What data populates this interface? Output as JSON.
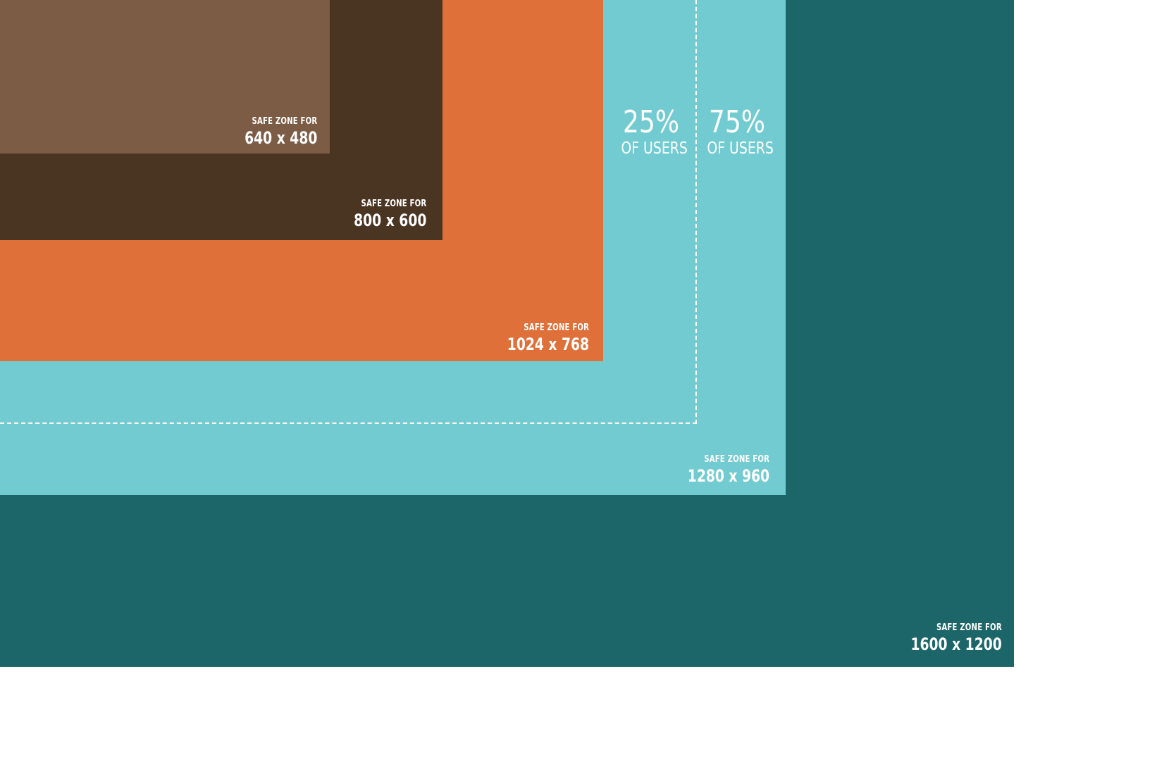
{
  "colors": {
    "zone_1600": "#1c6669",
    "zone_1280": "#72cbd1",
    "zone_1024": "#e07039",
    "zone_800": "#4a3523",
    "zone_640": "#7d5c45",
    "text": "#ffffff",
    "background": "#ffffff"
  },
  "zones": {
    "z1600": {
      "safe_label": "SAFE ZONE FOR",
      "resolution": "1600 x 1200"
    },
    "z1280": {
      "safe_label": "SAFE ZONE FOR",
      "resolution": "1280 x 960"
    },
    "z1024": {
      "safe_label": "SAFE ZONE FOR",
      "resolution": "1024 x 768"
    },
    "z800": {
      "safe_label": "SAFE ZONE FOR",
      "resolution": "800 x 600"
    },
    "z640": {
      "safe_label": "SAFE ZONE FOR",
      "resolution": "640 x 480"
    }
  },
  "user_stats": {
    "left": {
      "percent": "25%",
      "caption": "OF USERS"
    },
    "right": {
      "percent": "75%",
      "caption": "OF USERS"
    }
  }
}
